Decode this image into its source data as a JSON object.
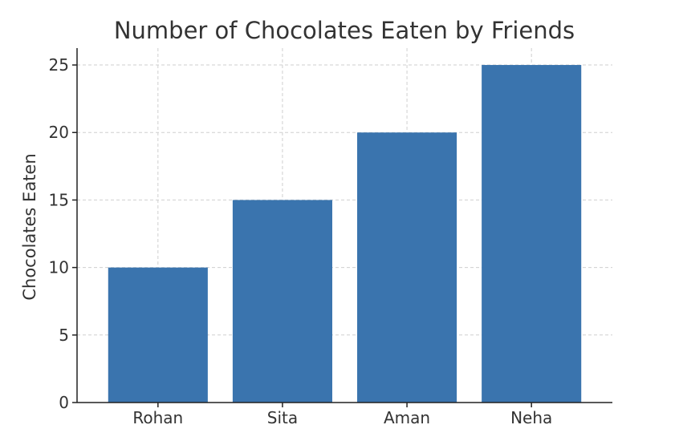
{
  "chart_data": {
    "type": "bar",
    "title": "Number of Chocolates Eaten by Friends",
    "xlabel": "",
    "ylabel": "Chocolates Eaten",
    "categories": [
      "Rohan",
      "Sita",
      "Aman",
      "Neha"
    ],
    "values": [
      10,
      15,
      20,
      25
    ],
    "ylim": [
      0,
      26.25
    ],
    "yticks": [
      0,
      5,
      10,
      15,
      20,
      25
    ],
    "grid": true,
    "bar_color": "#3a74ae"
  }
}
